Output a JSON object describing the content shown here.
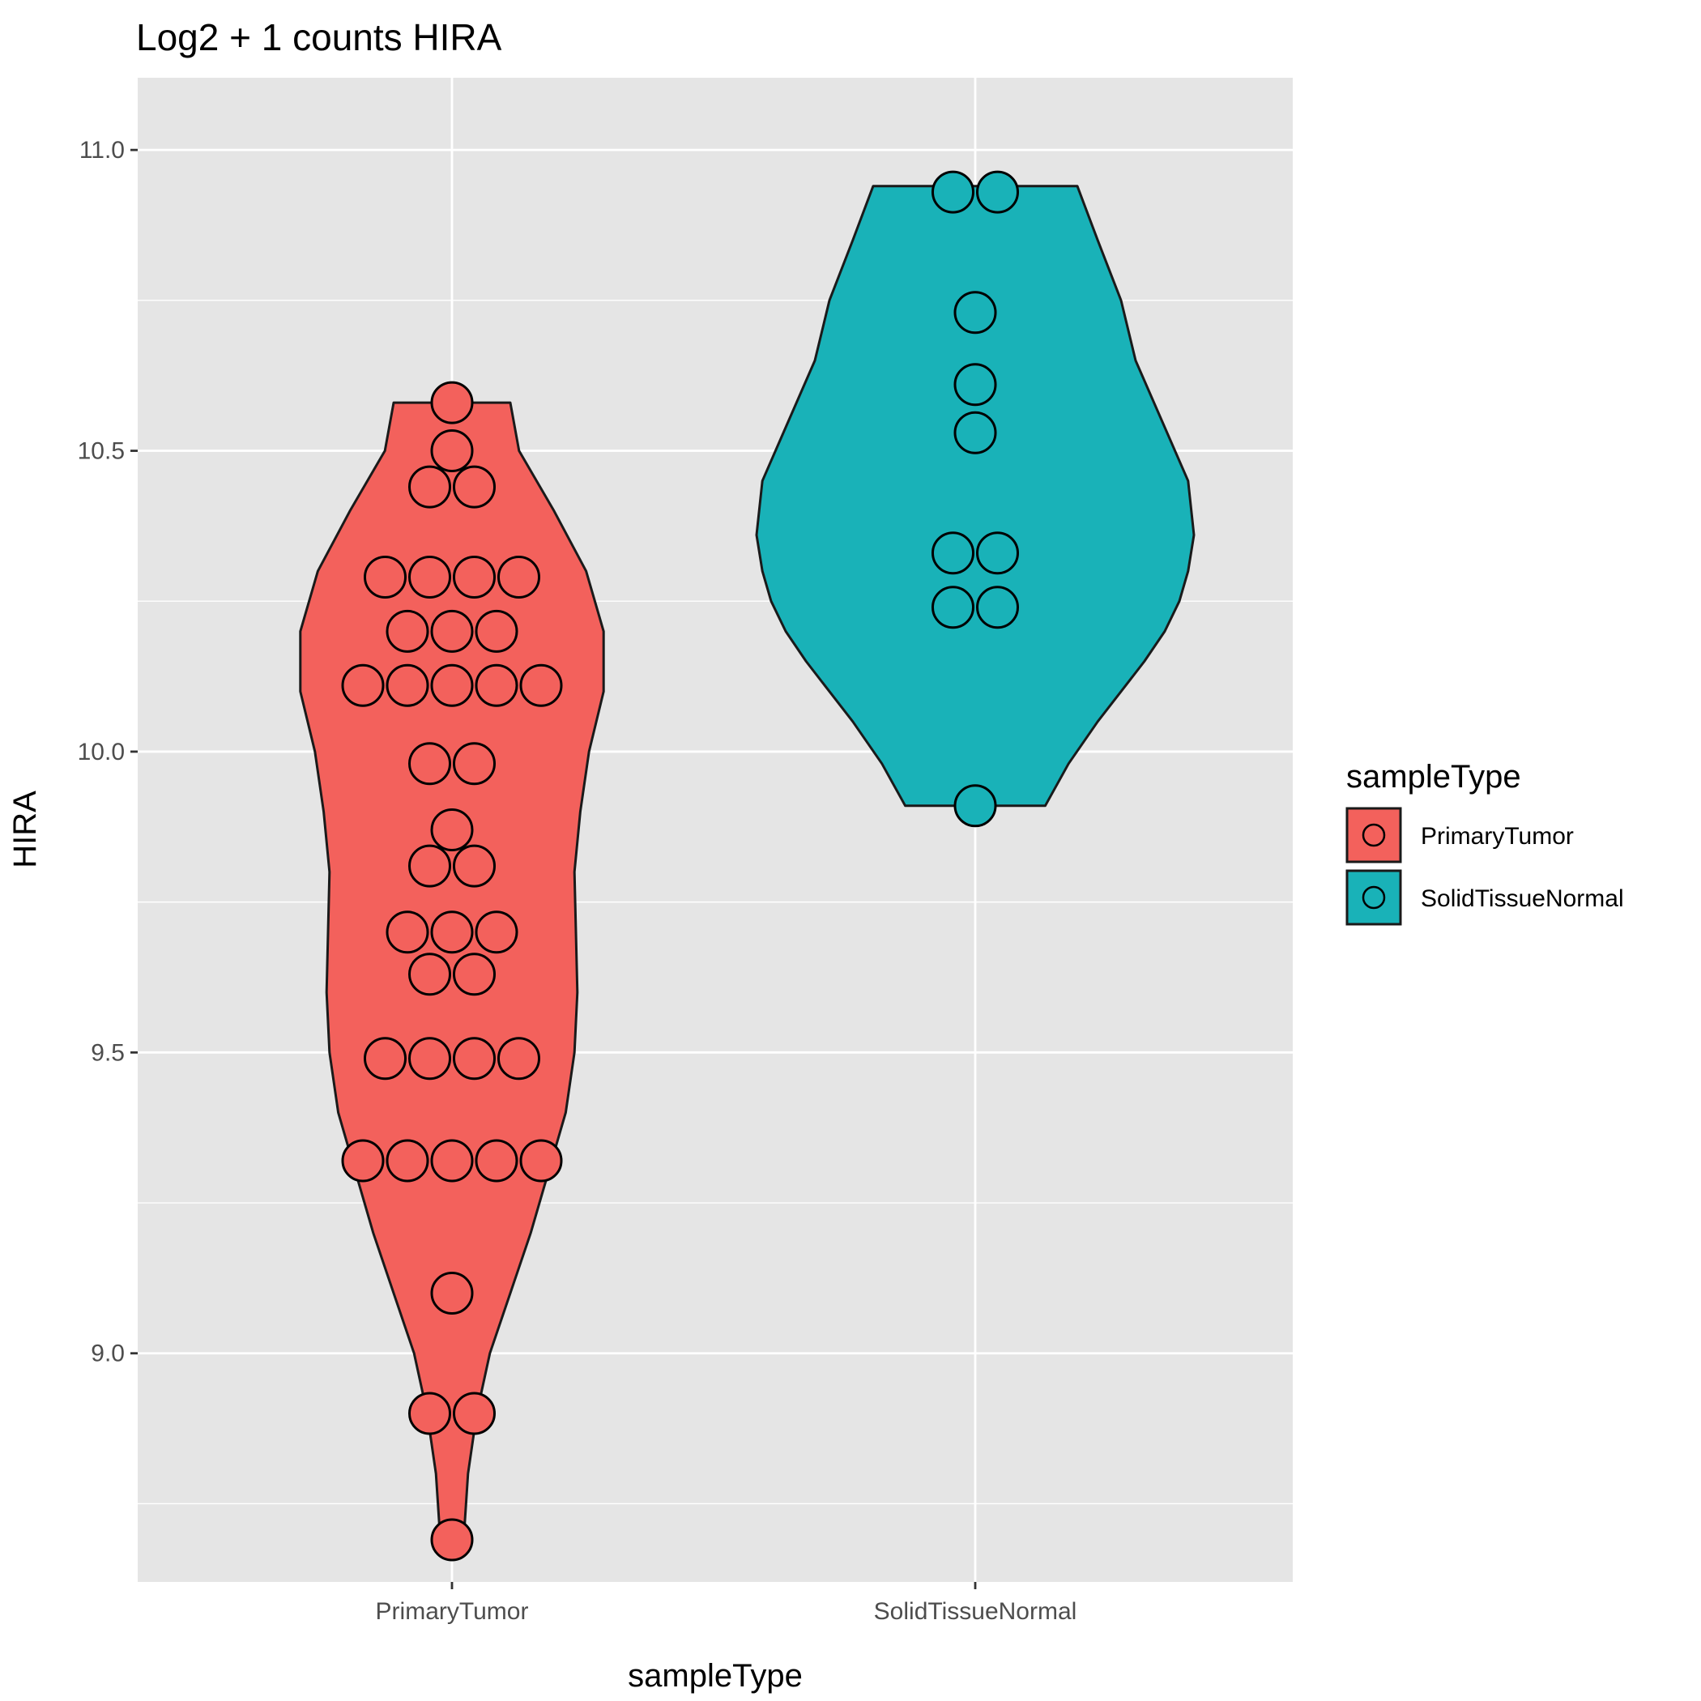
{
  "chart_data": {
    "type": "violin",
    "title": "Log2 + 1 counts HIRA",
    "xlabel": "sampleType",
    "ylabel": "HIRA",
    "categories": [
      "PrimaryTumor",
      "SolidTissueNormal"
    ],
    "ylim": [
      8.62,
      11.12
    ],
    "y_ticks": [
      9.0,
      9.5,
      10.0,
      10.5,
      11.0
    ],
    "y_tick_labels": [
      "9.0",
      "9.5",
      "10.0",
      "10.5",
      "11.0"
    ],
    "grid": true,
    "legend": {
      "title": "sampleType",
      "position": "right",
      "entries": [
        "PrimaryTumor",
        "SolidTissueNormal"
      ]
    },
    "colors": {
      "PrimaryTumor": "#F3615C",
      "SolidTissueNormal": "#19B2B8",
      "panel": "#E5E5E5",
      "grid": "#FFFFFF",
      "outline": "#1A1A1A"
    },
    "series": [
      {
        "name": "PrimaryTumor",
        "dot_rows": [
          {
            "y": 10.58,
            "n": 1
          },
          {
            "y": 10.5,
            "n": 1
          },
          {
            "y": 10.44,
            "n": 2
          },
          {
            "y": 10.29,
            "n": 4
          },
          {
            "y": 10.2,
            "n": 3
          },
          {
            "y": 10.11,
            "n": 5
          },
          {
            "y": 9.98,
            "n": 2
          },
          {
            "y": 9.87,
            "n": 1
          },
          {
            "y": 9.81,
            "n": 2
          },
          {
            "y": 9.7,
            "n": 3
          },
          {
            "y": 9.63,
            "n": 2
          },
          {
            "y": 9.49,
            "n": 4
          },
          {
            "y": 9.32,
            "n": 5
          },
          {
            "y": 9.1,
            "n": 1
          },
          {
            "y": 8.9,
            "n": 2
          },
          {
            "y": 8.69,
            "n": 1
          }
        ],
        "violin": {
          "ymin": 8.69,
          "ymax": 10.58,
          "profile": [
            [
              8.69,
              0.04
            ],
            [
              8.8,
              0.055
            ],
            [
              8.9,
              0.085
            ],
            [
              9.0,
              0.13
            ],
            [
              9.1,
              0.2
            ],
            [
              9.2,
              0.27
            ],
            [
              9.3,
              0.33
            ],
            [
              9.4,
              0.39
            ],
            [
              9.5,
              0.42
            ],
            [
              9.6,
              0.43
            ],
            [
              9.7,
              0.425
            ],
            [
              9.8,
              0.42
            ],
            [
              9.9,
              0.44
            ],
            [
              10.0,
              0.47
            ],
            [
              10.1,
              0.52
            ],
            [
              10.2,
              0.52
            ],
            [
              10.3,
              0.46
            ],
            [
              10.4,
              0.35
            ],
            [
              10.5,
              0.23
            ],
            [
              10.58,
              0.2
            ]
          ]
        }
      },
      {
        "name": "SolidTissueNormal",
        "dot_rows": [
          {
            "y": 10.93,
            "n": 2
          },
          {
            "y": 10.73,
            "n": 1
          },
          {
            "y": 10.61,
            "n": 1
          },
          {
            "y": 10.53,
            "n": 1
          },
          {
            "y": 10.33,
            "n": 2
          },
          {
            "y": 10.24,
            "n": 2
          },
          {
            "y": 9.91,
            "n": 1
          }
        ],
        "violin": {
          "ymin": 9.91,
          "ymax": 10.94,
          "profile": [
            [
              9.91,
              0.24
            ],
            [
              9.98,
              0.32
            ],
            [
              10.05,
              0.42
            ],
            [
              10.1,
              0.5
            ],
            [
              10.15,
              0.58
            ],
            [
              10.2,
              0.65
            ],
            [
              10.25,
              0.7
            ],
            [
              10.3,
              0.73
            ],
            [
              10.36,
              0.75
            ],
            [
              10.45,
              0.73
            ],
            [
              10.55,
              0.64
            ],
            [
              10.65,
              0.55
            ],
            [
              10.75,
              0.5
            ],
            [
              10.85,
              0.42
            ],
            [
              10.94,
              0.35
            ]
          ]
        }
      }
    ]
  }
}
